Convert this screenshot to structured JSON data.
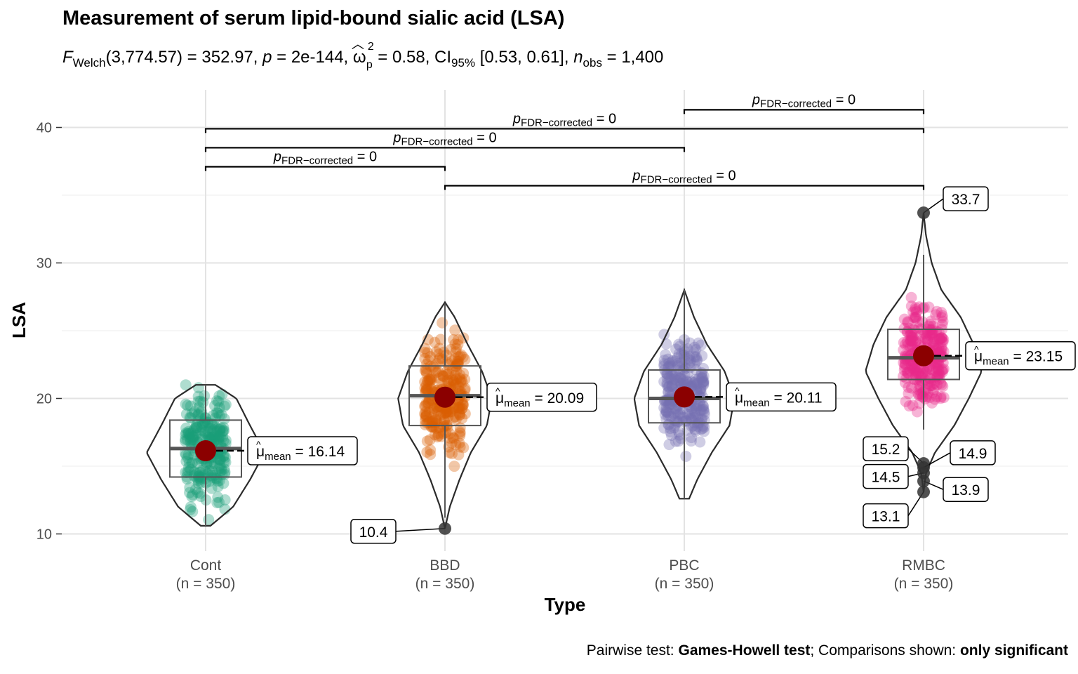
{
  "title": "Measurement of serum lipid-bound sialic acid (LSA)",
  "subtitle": {
    "f_label": "F",
    "f_sub": "Welch",
    "f_text": "(3,774.57) = 352.97, ",
    "p_label": "p",
    "p_text": " = 2e-144, ",
    "omega": "ω",
    "omega_sup": "2",
    "omega_sub": "p",
    "omega_text": " = 0.58, CI",
    "ci_sub": "95%",
    "ci_text": " [0.53, 0.61], ",
    "n_label": "n",
    "n_sub": "obs",
    "n_text": " = 1,400"
  },
  "caption": {
    "prefix": "Pairwise test: ",
    "test": "Games-Howell test",
    "middle": "; Comparisons shown: ",
    "shown": "only significant"
  },
  "chart_data": {
    "type": "violin-box-scatter",
    "xlabel": "Type",
    "ylabel": "LSA",
    "ylim": [
      9,
      42
    ],
    "yticks": [
      10,
      20,
      30,
      40
    ],
    "grid": true,
    "categories": [
      "Cont",
      "BBD",
      "PBC",
      "RMBC"
    ],
    "category_n": [
      "(n = 350)",
      "(n = 350)",
      "(n = 350)",
      "(n = 350)"
    ],
    "groups": [
      {
        "name": "Cont",
        "color": "#1B9E77",
        "min": 10.6,
        "q1": 14.2,
        "median": 16.3,
        "q3": 18.4,
        "max": 21.0,
        "mean": 16.14,
        "mean_label": "16.14",
        "outliers": [],
        "outlier_labels": [],
        "violin": [
          [
            10.6,
            0.06
          ],
          [
            12,
            0.34
          ],
          [
            14,
            0.55
          ],
          [
            16,
            0.73
          ],
          [
            18,
            0.55
          ],
          [
            20,
            0.38
          ],
          [
            21,
            0.12
          ]
        ]
      },
      {
        "name": "BBD",
        "color": "#D95F02",
        "min": 11.2,
        "q1": 18.0,
        "median": 20.2,
        "q3": 22.4,
        "max": 27.0,
        "mean": 20.09,
        "mean_label": "20.09",
        "outliers": [
          10.4
        ],
        "outlier_labels": [
          "10.4"
        ],
        "violin": [
          [
            10.4,
            0.0
          ],
          [
            12,
            0.06
          ],
          [
            14,
            0.18
          ],
          [
            16,
            0.32
          ],
          [
            18,
            0.52
          ],
          [
            20,
            0.58
          ],
          [
            22,
            0.46
          ],
          [
            24,
            0.28
          ],
          [
            26,
            0.12
          ],
          [
            27.1,
            0.0
          ]
        ]
      },
      {
        "name": "PBC",
        "color": "#7570B3",
        "min": 12.6,
        "q1": 18.2,
        "median": 20.0,
        "q3": 22.1,
        "max": 28.0,
        "mean": 20.11,
        "mean_label": "20.11",
        "outliers": [],
        "outlier_labels": [],
        "violin": [
          [
            12.6,
            0.06
          ],
          [
            14,
            0.16
          ],
          [
            16,
            0.34
          ],
          [
            18,
            0.56
          ],
          [
            20,
            0.62
          ],
          [
            22,
            0.5
          ],
          [
            24,
            0.28
          ],
          [
            26,
            0.12
          ],
          [
            28,
            0.0
          ]
        ]
      },
      {
        "name": "RMBC",
        "color": "#E7298A",
        "min": 17.7,
        "q1": 21.4,
        "median": 23.0,
        "q3": 25.1,
        "max": 30.6,
        "mean": 23.15,
        "mean_label": "23.15",
        "outliers": [
          33.7,
          15.2,
          14.9,
          14.5,
          13.9,
          13.1
        ],
        "outlier_labels": [
          "33.7",
          "15.2",
          "14.9",
          "14.5",
          "13.9",
          "13.1"
        ],
        "violin": [
          [
            13.1,
            0.0
          ],
          [
            14.5,
            0.03
          ],
          [
            16,
            0.14
          ],
          [
            18,
            0.38
          ],
          [
            20,
            0.56
          ],
          [
            22,
            0.72
          ],
          [
            24,
            0.62
          ],
          [
            26,
            0.46
          ],
          [
            28,
            0.22
          ],
          [
            30,
            0.1
          ],
          [
            32,
            0.03
          ],
          [
            33.7,
            0.0
          ]
        ]
      }
    ],
    "mean_prefix": "μ",
    "mean_sub": "mean",
    "comparisons": [
      {
        "from": "PBC",
        "to": "RMBC",
        "y": 41.3,
        "label_p": "p",
        "label_sub": "FDR−corrected",
        "label_val": " = 0"
      },
      {
        "from": "Cont",
        "to": "RMBC",
        "y": 39.9,
        "label_p": "p",
        "label_sub": "FDR−corrected",
        "label_val": " = 0"
      },
      {
        "from": "Cont",
        "to": "PBC",
        "y": 38.5,
        "label_p": "p",
        "label_sub": "FDR−corrected",
        "label_val": " = 0"
      },
      {
        "from": "Cont",
        "to": "BBD",
        "y": 37.1,
        "label_p": "p",
        "label_sub": "FDR−corrected",
        "label_val": " = 0"
      },
      {
        "from": "BBD",
        "to": "RMBC",
        "y": 35.7,
        "label_p": "p",
        "label_sub": "FDR−corrected",
        "label_val": " = 0"
      }
    ]
  }
}
